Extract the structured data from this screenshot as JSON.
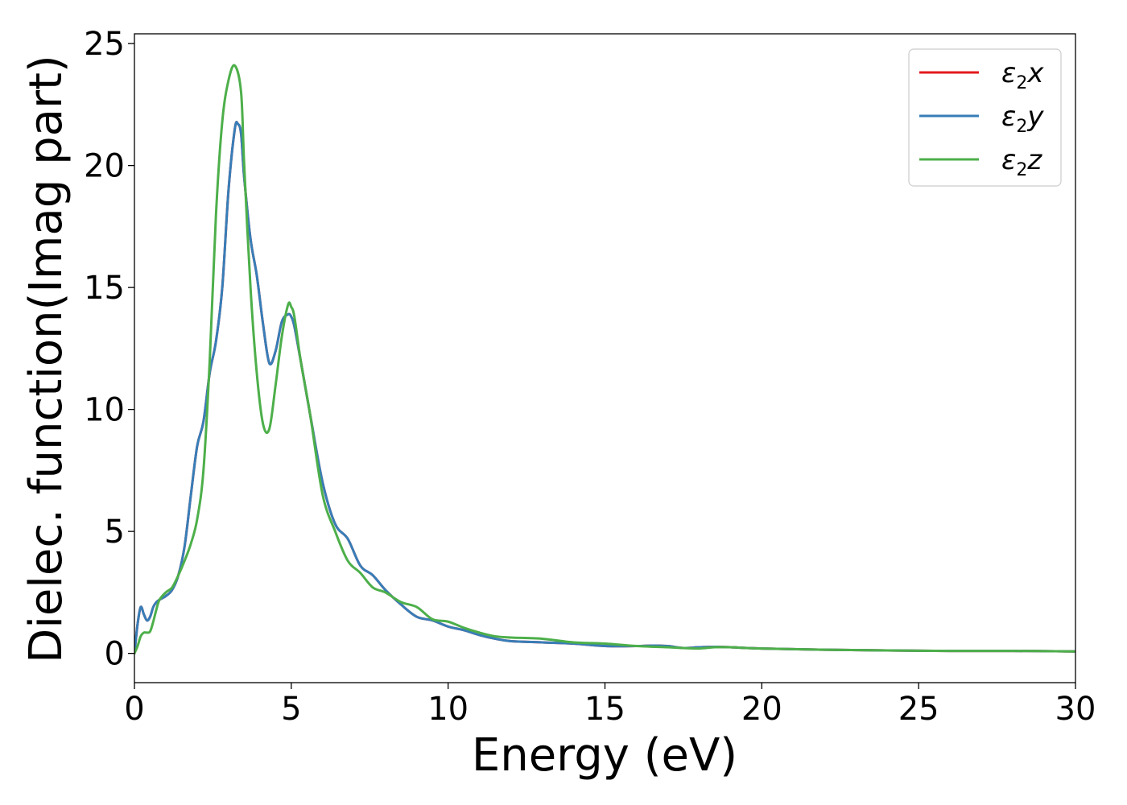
{
  "chart_data": {
    "type": "line",
    "xlabel": "Energy (eV)",
    "ylabel": "Dielec. function(Imag part)",
    "xlim": [
      0,
      30
    ],
    "ylim": [
      -1.2,
      25.4
    ],
    "xticks": [
      0,
      5,
      10,
      15,
      20,
      25,
      30
    ],
    "yticks": [
      0,
      5,
      10,
      15,
      20,
      25
    ],
    "grid": false,
    "legend_position": "top-right",
    "series": [
      {
        "name": "ε2x",
        "legend": {
          "symbol": "ε",
          "sub": "2",
          "axis": "x"
        },
        "color": "#e41a1c",
        "x": [
          0,
          0.1,
          0.2,
          0.3,
          0.4,
          0.5,
          0.6,
          0.7,
          0.8,
          1.0,
          1.2,
          1.4,
          1.6,
          1.8,
          2.0,
          2.2,
          2.4,
          2.6,
          2.8,
          3.0,
          3.2,
          3.3,
          3.4,
          3.5,
          3.7,
          3.9,
          4.1,
          4.3,
          4.5,
          4.7,
          4.9,
          5.0,
          5.1,
          5.3,
          5.6,
          6.0,
          6.4,
          6.8,
          7.2,
          7.6,
          8.0,
          8.5,
          9.0,
          9.5,
          10.0,
          10.5,
          11.0,
          11.5,
          12.0,
          13.0,
          14.0,
          15.0,
          16.0,
          16.5,
          17.0,
          17.5,
          18.0,
          18.5,
          19.0,
          20.0,
          22.0,
          24.0,
          26.0,
          28.0,
          30.0
        ],
        "values": [
          0.0,
          1.2,
          1.9,
          1.6,
          1.35,
          1.5,
          1.9,
          2.1,
          2.2,
          2.35,
          2.6,
          3.2,
          4.4,
          6.5,
          8.5,
          9.5,
          11.5,
          12.8,
          15.0,
          19.0,
          21.5,
          21.7,
          21.3,
          19.5,
          17.0,
          15.5,
          13.5,
          11.9,
          12.4,
          13.6,
          13.9,
          13.8,
          13.4,
          12.0,
          9.8,
          7.0,
          5.3,
          4.7,
          3.6,
          3.2,
          2.6,
          2.0,
          1.5,
          1.35,
          1.1,
          0.95,
          0.75,
          0.6,
          0.5,
          0.45,
          0.4,
          0.3,
          0.3,
          0.32,
          0.3,
          0.22,
          0.25,
          0.27,
          0.25,
          0.2,
          0.15,
          0.12,
          0.1,
          0.1,
          0.08
        ]
      },
      {
        "name": "ε2y",
        "legend": {
          "symbol": "ε",
          "sub": "2",
          "axis": "y"
        },
        "color": "#377eb8",
        "x": [
          0,
          0.1,
          0.2,
          0.3,
          0.4,
          0.5,
          0.6,
          0.7,
          0.8,
          1.0,
          1.2,
          1.4,
          1.6,
          1.8,
          2.0,
          2.2,
          2.4,
          2.6,
          2.8,
          3.0,
          3.2,
          3.3,
          3.4,
          3.5,
          3.7,
          3.9,
          4.1,
          4.3,
          4.5,
          4.7,
          4.9,
          5.0,
          5.1,
          5.3,
          5.6,
          6.0,
          6.4,
          6.8,
          7.2,
          7.6,
          8.0,
          8.5,
          9.0,
          9.5,
          10.0,
          10.5,
          11.0,
          11.5,
          12.0,
          13.0,
          14.0,
          15.0,
          16.0,
          16.5,
          17.0,
          17.5,
          18.0,
          18.5,
          19.0,
          20.0,
          22.0,
          24.0,
          26.0,
          28.0,
          30.0
        ],
        "values": [
          0.0,
          1.2,
          1.9,
          1.6,
          1.35,
          1.5,
          1.9,
          2.1,
          2.2,
          2.35,
          2.6,
          3.2,
          4.4,
          6.5,
          8.5,
          9.5,
          11.5,
          12.8,
          15.0,
          19.0,
          21.5,
          21.7,
          21.3,
          19.5,
          17.0,
          15.5,
          13.5,
          11.9,
          12.4,
          13.6,
          13.9,
          13.8,
          13.4,
          12.0,
          9.8,
          7.0,
          5.3,
          4.7,
          3.6,
          3.2,
          2.6,
          2.0,
          1.5,
          1.35,
          1.1,
          0.95,
          0.75,
          0.6,
          0.5,
          0.45,
          0.4,
          0.3,
          0.3,
          0.32,
          0.3,
          0.22,
          0.25,
          0.27,
          0.25,
          0.2,
          0.15,
          0.12,
          0.1,
          0.1,
          0.08
        ]
      },
      {
        "name": "ε2z",
        "legend": {
          "symbol": "ε",
          "sub": "2",
          "axis": "z"
        },
        "color": "#4daf4a",
        "x": [
          0,
          0.1,
          0.2,
          0.3,
          0.4,
          0.5,
          0.6,
          0.7,
          0.8,
          1.0,
          1.2,
          1.4,
          1.6,
          1.8,
          2.0,
          2.2,
          2.4,
          2.6,
          2.8,
          3.0,
          3.2,
          3.4,
          3.5,
          3.7,
          3.9,
          4.1,
          4.3,
          4.5,
          4.7,
          4.9,
          5.0,
          5.1,
          5.3,
          5.6,
          6.0,
          6.4,
          6.8,
          7.2,
          7.6,
          8.0,
          8.5,
          9.0,
          9.5,
          10.0,
          10.5,
          11.0,
          11.5,
          12.0,
          13.0,
          14.0,
          15.0,
          16.0,
          17.0,
          17.5,
          18.0,
          18.5,
          19.0,
          20.0,
          22.0,
          24.0,
          26.0,
          28.0,
          30.0
        ],
        "values": [
          0.0,
          0.3,
          0.7,
          0.85,
          0.85,
          0.9,
          1.3,
          1.8,
          2.2,
          2.5,
          2.7,
          3.2,
          3.8,
          4.5,
          5.5,
          7.5,
          12.0,
          18.0,
          21.8,
          23.5,
          24.1,
          23.0,
          20.0,
          15.0,
          11.5,
          9.4,
          9.2,
          11.0,
          13.0,
          14.3,
          14.2,
          13.8,
          12.0,
          9.8,
          6.5,
          5.0,
          3.8,
          3.3,
          2.7,
          2.5,
          2.1,
          1.9,
          1.4,
          1.3,
          1.05,
          0.85,
          0.7,
          0.65,
          0.6,
          0.45,
          0.4,
          0.3,
          0.25,
          0.22,
          0.2,
          0.25,
          0.25,
          0.2,
          0.15,
          0.12,
          0.1,
          0.1,
          0.08
        ]
      }
    ]
  }
}
